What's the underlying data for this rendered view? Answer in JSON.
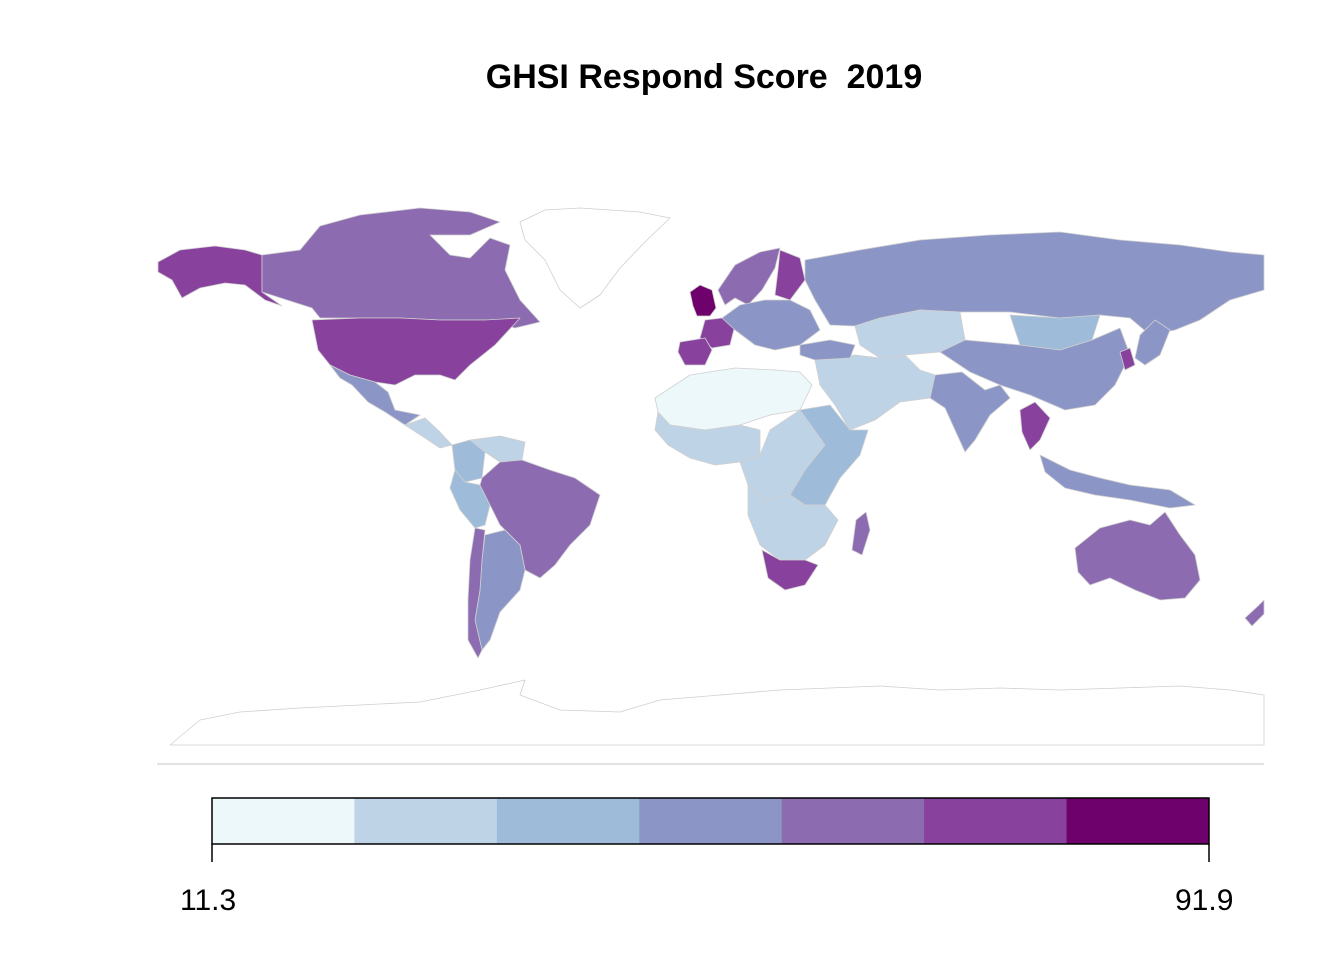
{
  "chart_data": {
    "type": "choropleth",
    "title": "GHSI Respond Score  2019",
    "legend": {
      "placement": "bottom",
      "min": 11.3,
      "max": 91.9,
      "min_label": "11.3",
      "max_label": "91.9",
      "colors": [
        "#edf8fb",
        "#bfd3e6",
        "#9ebcda",
        "#8c96c6",
        "#8c6bb1",
        "#88419d",
        "#6e016b"
      ]
    },
    "regions": [
      {
        "name": "Alaska",
        "bin": 6
      },
      {
        "name": "Canada",
        "bin": 5
      },
      {
        "name": "Greenland",
        "bin": 0
      },
      {
        "name": "United States",
        "bin": 6
      },
      {
        "name": "Mexico",
        "bin": 4
      },
      {
        "name": "Central America",
        "bin": 2
      },
      {
        "name": "Colombia",
        "bin": 3
      },
      {
        "name": "Venezuela",
        "bin": 2
      },
      {
        "name": "Peru",
        "bin": 3
      },
      {
        "name": "Brazil",
        "bin": 5
      },
      {
        "name": "Argentina",
        "bin": 4
      },
      {
        "name": "Chile",
        "bin": 5
      },
      {
        "name": "United Kingdom",
        "bin": 7
      },
      {
        "name": "France",
        "bin": 6
      },
      {
        "name": "Spain",
        "bin": 6
      },
      {
        "name": "Norway / Sweden",
        "bin": 5
      },
      {
        "name": "Finland",
        "bin": 6
      },
      {
        "name": "Central Europe",
        "bin": 4
      },
      {
        "name": "Russia",
        "bin": 4
      },
      {
        "name": "Kazakhstan",
        "bin": 2
      },
      {
        "name": "Mongolia",
        "bin": 3
      },
      {
        "name": "China",
        "bin": 4
      },
      {
        "name": "India",
        "bin": 4
      },
      {
        "name": "Middle East",
        "bin": 2
      },
      {
        "name": "Turkey",
        "bin": 4
      },
      {
        "name": "South Korea",
        "bin": 6
      },
      {
        "name": "Japan",
        "bin": 4
      },
      {
        "name": "Thailand",
        "bin": 6
      },
      {
        "name": "Indonesia",
        "bin": 4
      },
      {
        "name": "North Africa",
        "bin": 1
      },
      {
        "name": "West Africa",
        "bin": 2
      },
      {
        "name": "Central Africa",
        "bin": 2
      },
      {
        "name": "East Africa",
        "bin": 3
      },
      {
        "name": "Southern Africa",
        "bin": 2
      },
      {
        "name": "South Africa",
        "bin": 6
      },
      {
        "name": "Madagascar",
        "bin": 5
      },
      {
        "name": "Australia",
        "bin": 5
      },
      {
        "name": "New Zealand",
        "bin": 5
      },
      {
        "name": "Antarctica",
        "bin": 0
      }
    ]
  }
}
